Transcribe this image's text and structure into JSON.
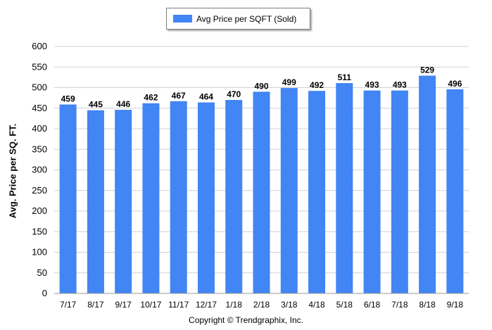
{
  "chart_data": {
    "type": "bar",
    "legend": [
      "Avg Price per SQFT (Sold)"
    ],
    "legend_position": "top-center",
    "ylabel": "Avg. Price per SQ. FT.",
    "xlabel": "",
    "categories": [
      "7/17",
      "8/17",
      "9/17",
      "10/17",
      "11/17",
      "12/17",
      "1/18",
      "2/18",
      "3/18",
      "4/18",
      "5/18",
      "6/18",
      "7/18",
      "8/18",
      "9/18"
    ],
    "series": [
      {
        "name": "Avg Price per SQFT (Sold)",
        "values": [
          459,
          445,
          446,
          462,
          467,
          464,
          470,
          490,
          499,
          492,
          511,
          493,
          493,
          529,
          496
        ]
      }
    ],
    "ylim": [
      0,
      600
    ],
    "yticks": [
      0,
      50,
      100,
      150,
      200,
      250,
      300,
      350,
      400,
      450,
      500,
      550,
      600
    ],
    "grid": true,
    "bar_color": "#4285f4",
    "footer": "Copyright © Trendgraphix, Inc."
  }
}
